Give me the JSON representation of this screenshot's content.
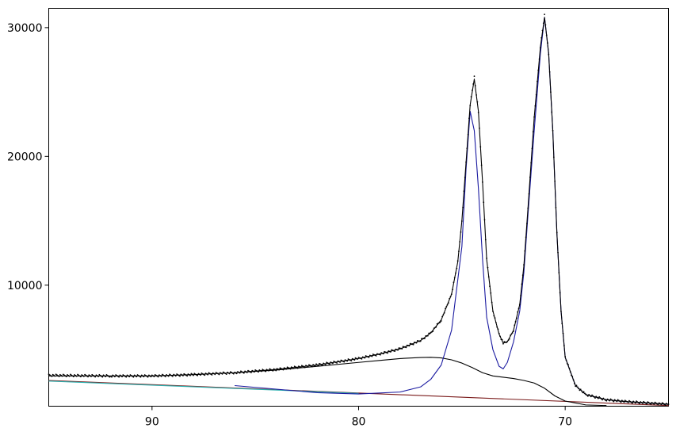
{
  "chart_data": {
    "type": "line",
    "title": "",
    "xlabel": "",
    "ylabel": "",
    "x_reversed": true,
    "xlim": [
      95.0,
      65.0
    ],
    "ylim": [
      600,
      31500
    ],
    "xticks": [
      90,
      80,
      70
    ],
    "xtick_labels": [
      "90",
      "80",
      "70"
    ],
    "yticks": [
      10000,
      20000,
      30000
    ],
    "ytick_labels": [
      "10000",
      "20000",
      "30000"
    ],
    "grid": false,
    "legend": "none",
    "series": [
      {
        "role": "measured-data",
        "style": "dots",
        "color": "#000000",
        "x": [
          95,
          92,
          90,
          88,
          86,
          84,
          82,
          80,
          79,
          78,
          77,
          76.5,
          76,
          75.5,
          75.2,
          75,
          74.8,
          74.6,
          74.4,
          74.2,
          74,
          73.8,
          73.5,
          73.2,
          73,
          72.8,
          72.5,
          72.2,
          72,
          71.8,
          71.5,
          71.2,
          71,
          70.8,
          70.6,
          70.4,
          70.2,
          70,
          69.5,
          69,
          68,
          67,
          66,
          65
        ],
        "y": [
          3000,
          2950,
          2950,
          3050,
          3200,
          3450,
          3800,
          4300,
          4650,
          5050,
          5700,
          6300,
          7300,
          9300,
          11800,
          15000,
          19500,
          24000,
          26200,
          23500,
          18000,
          12000,
          8000,
          6200,
          5500,
          5600,
          6500,
          8500,
          11500,
          16000,
          23000,
          28500,
          31000,
          28000,
          22000,
          14000,
          8000,
          4400,
          2200,
          1500,
          1100,
          950,
          850,
          750
        ]
      },
      {
        "role": "envelope-fit",
        "style": "line",
        "color": "#000000",
        "x": [
          95,
          92,
          90,
          88,
          86,
          84,
          82,
          80,
          79,
          78,
          77,
          76.5,
          76,
          75.5,
          75.2,
          75,
          74.8,
          74.6,
          74.4,
          74.2,
          74,
          73.8,
          73.5,
          73.2,
          73,
          72.8,
          72.5,
          72.2,
          72,
          71.8,
          71.5,
          71.2,
          71,
          70.8,
          70.6,
          70.4,
          70.2,
          70,
          69.5,
          69,
          68,
          67,
          66,
          65
        ],
        "y": [
          2950,
          2950,
          2950,
          3050,
          3200,
          3450,
          3800,
          4300,
          4650,
          5050,
          5700,
          6300,
          7300,
          9300,
          11800,
          15000,
          19500,
          24000,
          26000,
          23500,
          18000,
          12000,
          8000,
          6200,
          5500,
          5600,
          6500,
          8500,
          11500,
          16000,
          23000,
          28500,
          30800,
          28000,
          22000,
          14000,
          8000,
          4400,
          2200,
          1500,
          1100,
          950,
          850,
          750
        ]
      },
      {
        "role": "peak-component",
        "style": "line",
        "color": "#1a1aa0",
        "x": [
          86,
          82,
          80,
          78,
          77,
          76.5,
          76,
          75.5,
          75,
          74.8,
          74.6,
          74.4,
          74.2,
          74,
          73.8,
          73.5,
          73.2,
          73,
          72.8,
          72.5,
          72.2,
          72,
          71.8,
          71.5,
          71.2,
          71,
          70.8,
          70.6,
          70.4,
          70.2,
          70,
          69.5,
          69,
          68,
          67,
          66,
          65
        ],
        "y": [
          2200,
          1650,
          1550,
          1700,
          2100,
          2700,
          3800,
          6500,
          13000,
          19000,
          23500,
          22000,
          17500,
          12000,
          7500,
          5000,
          3700,
          3500,
          4000,
          5600,
          8000,
          11000,
          15500,
          22000,
          28000,
          30800,
          28000,
          22000,
          14000,
          8000,
          4400,
          2200,
          1500,
          1100,
          950,
          850,
          750
        ]
      },
      {
        "role": "shoulder-component",
        "style": "line",
        "color": "#000000",
        "x": [
          86,
          84,
          82,
          80,
          79,
          78,
          77,
          76.5,
          76,
          75.5,
          75,
          74.5,
          74,
          73.5,
          73,
          72.5,
          72,
          71.5,
          71,
          70.5,
          70,
          69,
          68
        ],
        "y": [
          3200,
          3400,
          3700,
          4000,
          4150,
          4300,
          4380,
          4400,
          4350,
          4200,
          3950,
          3600,
          3200,
          2950,
          2850,
          2750,
          2600,
          2400,
          2000,
          1400,
          1000,
          700,
          650
        ]
      },
      {
        "role": "background-linear",
        "style": "line",
        "color": "#7a1a1a",
        "x": [
          95,
          65
        ],
        "y": [
          2600,
          650
        ]
      },
      {
        "role": "background-linear",
        "style": "line",
        "color": "#2ab0b0",
        "x": [
          95,
          80
        ],
        "y": [
          2550,
          1600
        ]
      }
    ]
  }
}
